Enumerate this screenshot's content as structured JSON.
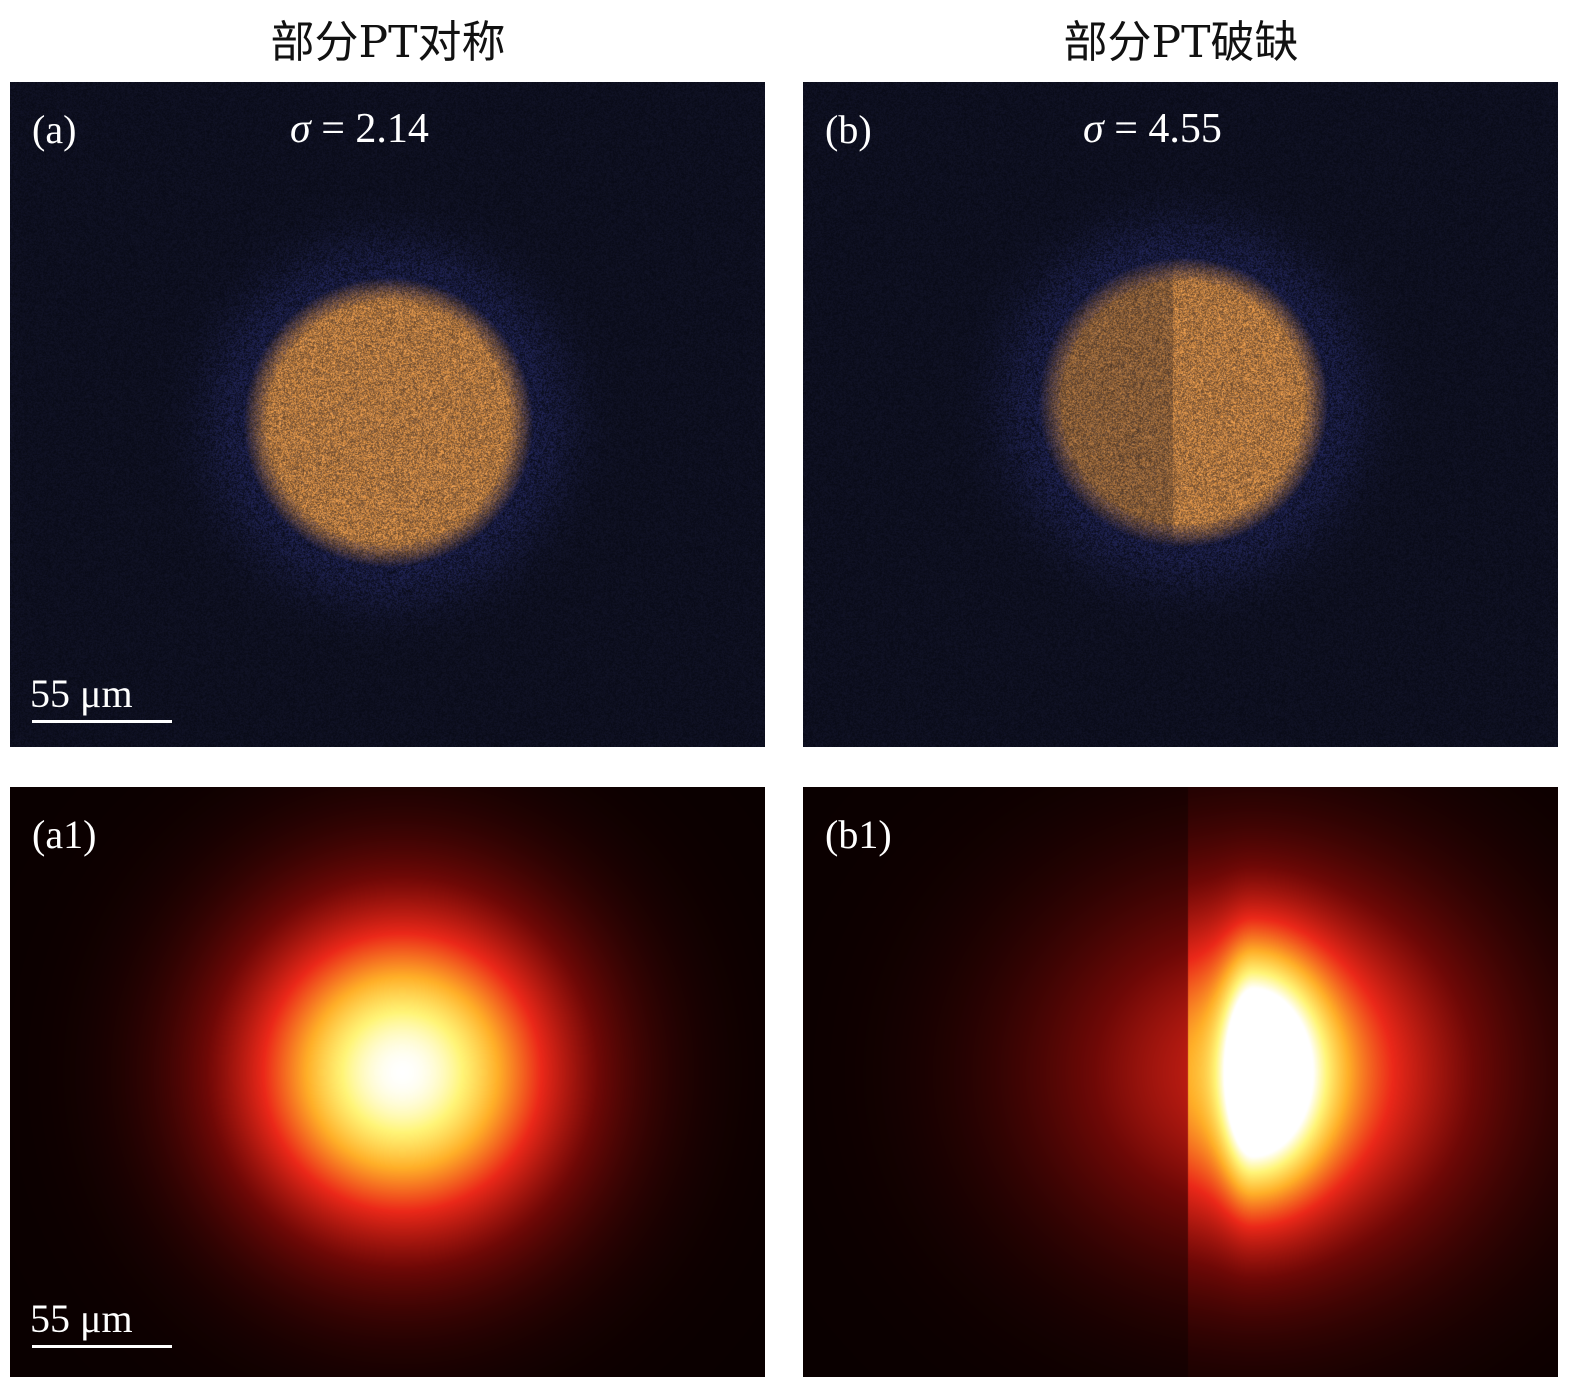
{
  "columns": {
    "left_title": "部分PT对称",
    "right_title": "部分PT破缺"
  },
  "panels": {
    "a": {
      "label": "(a)",
      "sigma_symbol": "σ",
      "sigma_eq": " = 2.14",
      "scale_label": "55 μm"
    },
    "b": {
      "label": "(b)",
      "sigma_symbol": "σ",
      "sigma_eq": " = 4.55"
    },
    "a1": {
      "label": "(a1)",
      "scale_label": "55 μm"
    },
    "b1": {
      "label": "(b1)"
    }
  },
  "colors": {
    "experimental_background": "#0b0d1a",
    "experimental_spot": "#c98a3a",
    "simulation_background": "#0a0000",
    "simulation_peak": "#ffffff"
  }
}
